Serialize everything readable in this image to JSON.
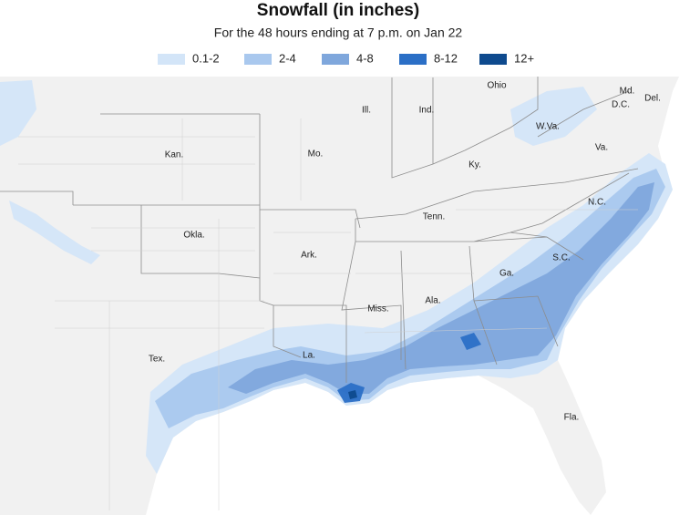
{
  "header": {
    "title": "Snowfall (in inches)",
    "subtitle": "For the 48 hours ending at 7 p.m. on Jan 22"
  },
  "legend": {
    "items": [
      {
        "label": "0.1-2",
        "color": "#d3e5f8"
      },
      {
        "label": "2-4",
        "color": "#a9c8ee"
      },
      {
        "label": "4-8",
        "color": "#7fa7dc"
      },
      {
        "label": "8-12",
        "color": "#2b6fc6"
      },
      {
        "label": "12+",
        "color": "#0e4a8e"
      }
    ]
  },
  "map": {
    "labels": [
      "Ohio",
      "Ill.",
      "Ind.",
      "Md.",
      "Del.",
      "D.C.",
      "W.Va.",
      "Va.",
      "Kan.",
      "Mo.",
      "Ky.",
      "N.C.",
      "Tenn.",
      "Okla.",
      "Ark.",
      "S.C.",
      "Ga.",
      "Ala.",
      "Miss.",
      "La.",
      "Tex.",
      "Fla."
    ]
  }
}
